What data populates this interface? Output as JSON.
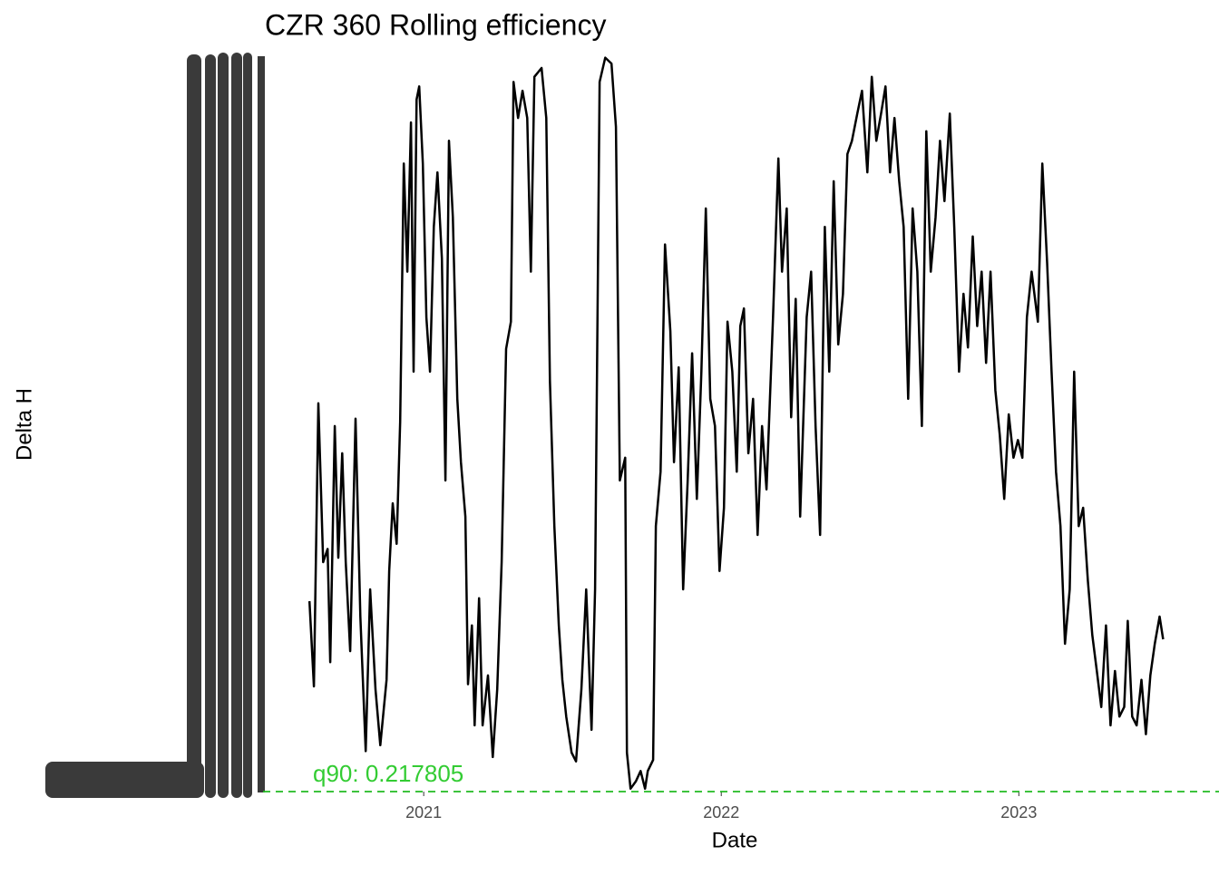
{
  "chart_data": {
    "type": "line",
    "title": "CZR 360 Rolling efficiency",
    "x_label": "Date",
    "y_label": "Delta H",
    "x": [
      2020.616,
      2020.631,
      2020.646,
      2020.662,
      2020.677,
      2020.686,
      2020.701,
      2020.713,
      2020.726,
      2020.738,
      2020.753,
      2020.771,
      2020.787,
      2020.805,
      2020.82,
      2020.838,
      2020.854,
      2020.875,
      2020.884,
      2020.896,
      2020.909,
      2020.921,
      2020.933,
      2020.945,
      2020.957,
      2020.966,
      2020.976,
      2020.985,
      2020.997,
      2021.009,
      2021.021,
      2021.034,
      2021.046,
      2021.061,
      2021.073,
      2021.085,
      2021.098,
      2021.113,
      2021.125,
      2021.14,
      2021.149,
      2021.162,
      2021.171,
      2021.186,
      2021.198,
      2021.216,
      2021.232,
      2021.247,
      2021.262,
      2021.277,
      2021.293,
      2021.302,
      2021.317,
      2021.332,
      2021.348,
      2021.36,
      2021.372,
      2021.396,
      2021.412,
      2021.424,
      2021.439,
      2021.454,
      2021.466,
      2021.479,
      2021.497,
      2021.512,
      2021.53,
      2021.546,
      2021.564,
      2021.576,
      2021.591,
      2021.61,
      2021.631,
      2021.646,
      2021.659,
      2021.677,
      2021.683,
      2021.695,
      2021.713,
      2021.729,
      2021.744,
      2021.753,
      2021.771,
      2021.78,
      2021.796,
      2021.811,
      2021.829,
      2021.841,
      2021.857,
      2021.872,
      2021.887,
      2021.902,
      2021.918,
      2021.933,
      2021.948,
      2021.963,
      2021.979,
      2021.994,
      2022.009,
      2022.021,
      2022.037,
      2022.052,
      2022.064,
      2022.076,
      2022.091,
      2022.107,
      2022.122,
      2022.137,
      2022.152,
      2022.174,
      2022.192,
      2022.204,
      2022.22,
      2022.235,
      2022.25,
      2022.265,
      2022.287,
      2022.302,
      2022.317,
      2022.332,
      2022.348,
      2022.363,
      2022.378,
      2022.393,
      2022.409,
      2022.424,
      2022.439,
      2022.457,
      2022.473,
      2022.491,
      2022.506,
      2022.521,
      2022.537,
      2022.552,
      2022.567,
      2022.582,
      2022.598,
      2022.613,
      2022.628,
      2022.643,
      2022.659,
      2022.674,
      2022.689,
      2022.704,
      2022.72,
      2022.735,
      2022.75,
      2022.768,
      2022.783,
      2022.799,
      2022.814,
      2022.829,
      2022.845,
      2022.86,
      2022.875,
      2022.89,
      2022.905,
      2022.921,
      2022.936,
      2022.951,
      2022.966,
      2022.982,
      2022.997,
      2023.012,
      2023.027,
      2023.043,
      2023.064,
      2023.079,
      2023.095,
      2023.11,
      2023.125,
      2023.14,
      2023.155,
      2023.171,
      2023.186,
      2023.201,
      2023.216,
      2023.232,
      2023.247,
      2023.262,
      2023.277,
      2023.293,
      2023.308,
      2023.323,
      2023.338,
      2023.354,
      2023.366,
      2023.381,
      2023.396,
      2023.412,
      2023.427,
      2023.442,
      2023.457,
      2023.473,
      2023.485
    ],
    "series": [
      {
        "color": "#000000",
        "values": [
          25.9,
          14.3,
          52.8,
          31.2,
          33.0,
          17.6,
          49.7,
          31.8,
          46.0,
          31.2,
          19.1,
          50.7,
          23.8,
          5.5,
          27.5,
          13.9,
          6.3,
          15.2,
          30.0,
          39.2,
          33.7,
          50.3,
          85.4,
          70.7,
          91.0,
          57.1,
          94.1,
          95.9,
          85.4,
          64.5,
          57.1,
          76.8,
          84.2,
          72.5,
          42.3,
          88.5,
          78.1,
          53.4,
          44.8,
          37.4,
          14.6,
          22.6,
          9.0,
          26.3,
          9.0,
          15.8,
          4.7,
          13.9,
          31.2,
          60.2,
          63.9,
          96.5,
          91.6,
          95.3,
          91.6,
          70.7,
          97.2,
          98.4,
          91.6,
          55.9,
          36.1,
          22.6,
          15.2,
          10.2,
          5.3,
          4.1,
          13.9,
          27.5,
          8.4,
          27.5,
          96.5,
          99.8,
          99.0,
          90.4,
          42.3,
          45.4,
          5.3,
          0.4,
          1.4,
          2.8,
          0.4,
          2.8,
          4.3,
          36.1,
          43.5,
          74.4,
          62.6,
          44.8,
          57.7,
          27.5,
          42.3,
          59.6,
          39.8,
          57.1,
          79.3,
          53.4,
          49.7,
          30.0,
          38.6,
          63.9,
          57.1,
          43.5,
          63.3,
          65.7,
          46.0,
          53.4,
          34.9,
          49.7,
          41.1,
          64.5,
          86.1,
          70.7,
          79.3,
          50.9,
          67.0,
          37.4,
          64.5,
          70.7,
          49.7,
          34.9,
          76.8,
          57.1,
          83.0,
          60.8,
          67.7,
          86.7,
          88.5,
          92.2,
          95.3,
          84.2,
          97.2,
          88.5,
          92.2,
          95.9,
          84.2,
          91.6,
          83.0,
          76.8,
          53.4,
          79.3,
          70.7,
          49.7,
          89.8,
          70.7,
          78.1,
          88.5,
          80.3,
          92.2,
          76.8,
          57.1,
          67.7,
          60.4,
          75.5,
          63.3,
          70.7,
          58.3,
          70.7,
          54.6,
          48.5,
          39.8,
          51.3,
          45.4,
          47.8,
          45.4,
          64.5,
          70.7,
          63.9,
          85.4,
          71.9,
          57.1,
          43.5,
          36.1,
          20.1,
          27.5,
          57.1,
          36.1,
          38.6,
          28.7,
          21.3,
          16.4,
          11.5,
          22.6,
          9.0,
          16.4,
          10.2,
          11.5,
          23.2,
          10.2,
          9.0,
          15.2,
          7.8,
          15.8,
          20.1,
          23.8,
          20.7
        ]
      }
    ],
    "xlim": [
      2020.46,
      2023.63
    ],
    "xticks": [
      2021,
      2022,
      2023
    ],
    "ylim": [
      0,
      100
    ],
    "hline": {
      "value": 0,
      "color": "#22bb22"
    },
    "annotations": [
      {
        "text": "q90: 0.217805",
        "color": "#33cc33"
      }
    ]
  }
}
